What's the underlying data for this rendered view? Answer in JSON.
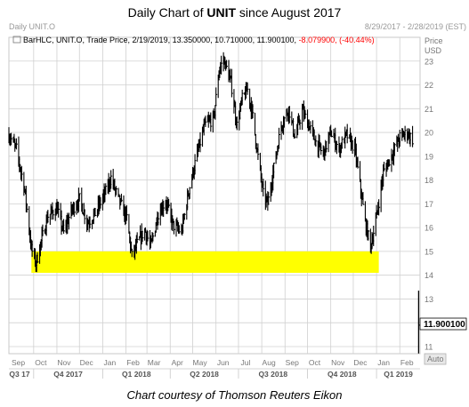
{
  "header": {
    "title_prefix": "Daily Chart of ",
    "title_ticker": "UNIT",
    "title_suffix": " since August 2017",
    "corner_label": "Daily UNIT.O",
    "date_range": "8/29/2017 - 2/28/2019 (EST)"
  },
  "legend": {
    "line_text": "BarHLC, UNIT.O, Trade Price, 2/19/2019, 13.350000, 10.710000, 11.900100,",
    "change_text": "-8.079900, (-40.44%)",
    "change_color": "#ff0000"
  },
  "right_axis": {
    "price_label": "Price",
    "currency_label": "USD",
    "auto_button": "Auto"
  },
  "last_price_label": "11.900100",
  "caption": "Chart courtesy of Thomson Reuters Eikon",
  "colors": {
    "bars": "#000000",
    "band": "#ffff00",
    "grid": "#d0d0d0",
    "axis_text": "#777777"
  },
  "chart_data": {
    "type": "ohlc",
    "xlabel": "",
    "ylabel": "Price",
    "ylim": [
      10.7,
      24.0
    ],
    "y_ticks": [
      11,
      12,
      13,
      14,
      15,
      16,
      17,
      18,
      19,
      20,
      21,
      22,
      23
    ],
    "x_month_labels": [
      "Sep",
      "Oct",
      "Nov",
      "Dec",
      "Jan",
      "Feb",
      "Mar",
      "Apr",
      "May",
      "Jun",
      "Jul",
      "Aug",
      "Sep",
      "Oct",
      "Nov",
      "Dec",
      "Jan",
      "Feb"
    ],
    "x_quarter_labels": [
      "Q3 17",
      "Q4 2017",
      "Q1 2018",
      "Q2 2018",
      "Q3 2018",
      "Q4 2018",
      "Q1 2019"
    ],
    "highlight_band": {
      "low": 14.1,
      "high": 15.0,
      "color": "#ffff00"
    },
    "last_bar": {
      "date": "2/19/2019",
      "high": 13.35,
      "low": 10.71,
      "close": 11.9001
    },
    "price_path": [
      [
        "2017-08-29",
        19.9
      ],
      [
        "2017-09-08",
        19.3
      ],
      [
        "2017-09-19",
        17.6
      ],
      [
        "2017-09-28",
        15.1
      ],
      [
        "2017-10-04",
        14.5
      ],
      [
        "2017-10-10",
        15.3
      ],
      [
        "2017-10-20",
        16.5
      ],
      [
        "2017-11-01",
        16.8
      ],
      [
        "2017-11-10",
        15.8
      ],
      [
        "2017-11-20",
        16.7
      ],
      [
        "2017-12-01",
        17.2
      ],
      [
        "2017-12-12",
        16.2
      ],
      [
        "2017-12-22",
        16.6
      ],
      [
        "2018-01-05",
        17.5
      ],
      [
        "2018-01-12",
        18.1
      ],
      [
        "2018-01-22",
        17.2
      ],
      [
        "2018-02-02",
        16.4
      ],
      [
        "2018-02-09",
        14.8
      ],
      [
        "2018-02-16",
        15.3
      ],
      [
        "2018-02-26",
        15.9
      ],
      [
        "2018-03-06",
        15.2
      ],
      [
        "2018-03-16",
        16.6
      ],
      [
        "2018-03-26",
        17.1
      ],
      [
        "2018-04-05",
        16.1
      ],
      [
        "2018-04-16",
        15.8
      ],
      [
        "2018-04-26",
        17.6
      ],
      [
        "2018-05-07",
        19.1
      ],
      [
        "2018-05-17",
        20.3
      ],
      [
        "2018-05-29",
        20.6
      ],
      [
        "2018-06-05",
        22.6
      ],
      [
        "2018-06-11",
        23.1
      ],
      [
        "2018-06-21",
        22.1
      ],
      [
        "2018-06-29",
        20.3
      ],
      [
        "2018-07-06",
        21.4
      ],
      [
        "2018-07-13",
        21.8
      ],
      [
        "2018-07-19",
        20.9
      ],
      [
        "2018-07-26",
        19.2
      ],
      [
        "2018-08-03",
        17.4
      ],
      [
        "2018-08-09",
        17.0
      ],
      [
        "2018-08-17",
        18.5
      ],
      [
        "2018-08-27",
        20.3
      ],
      [
        "2018-09-06",
        21.0
      ],
      [
        "2018-09-14",
        19.8
      ],
      [
        "2018-09-24",
        20.9
      ],
      [
        "2018-10-03",
        20.3
      ],
      [
        "2018-10-12",
        19.6
      ],
      [
        "2018-10-22",
        19.1
      ],
      [
        "2018-11-01",
        20.0
      ],
      [
        "2018-11-12",
        19.3
      ],
      [
        "2018-11-22",
        19.9
      ],
      [
        "2018-12-03",
        19.3
      ],
      [
        "2018-12-10",
        17.8
      ],
      [
        "2018-12-17",
        16.2
      ],
      [
        "2018-12-24",
        15.2
      ],
      [
        "2018-12-31",
        16.3
      ],
      [
        "2019-01-10",
        18.3
      ],
      [
        "2019-01-22",
        19.1
      ],
      [
        "2019-02-01",
        19.8
      ],
      [
        "2019-02-11",
        20.0
      ],
      [
        "2019-02-18",
        19.7
      ]
    ]
  }
}
